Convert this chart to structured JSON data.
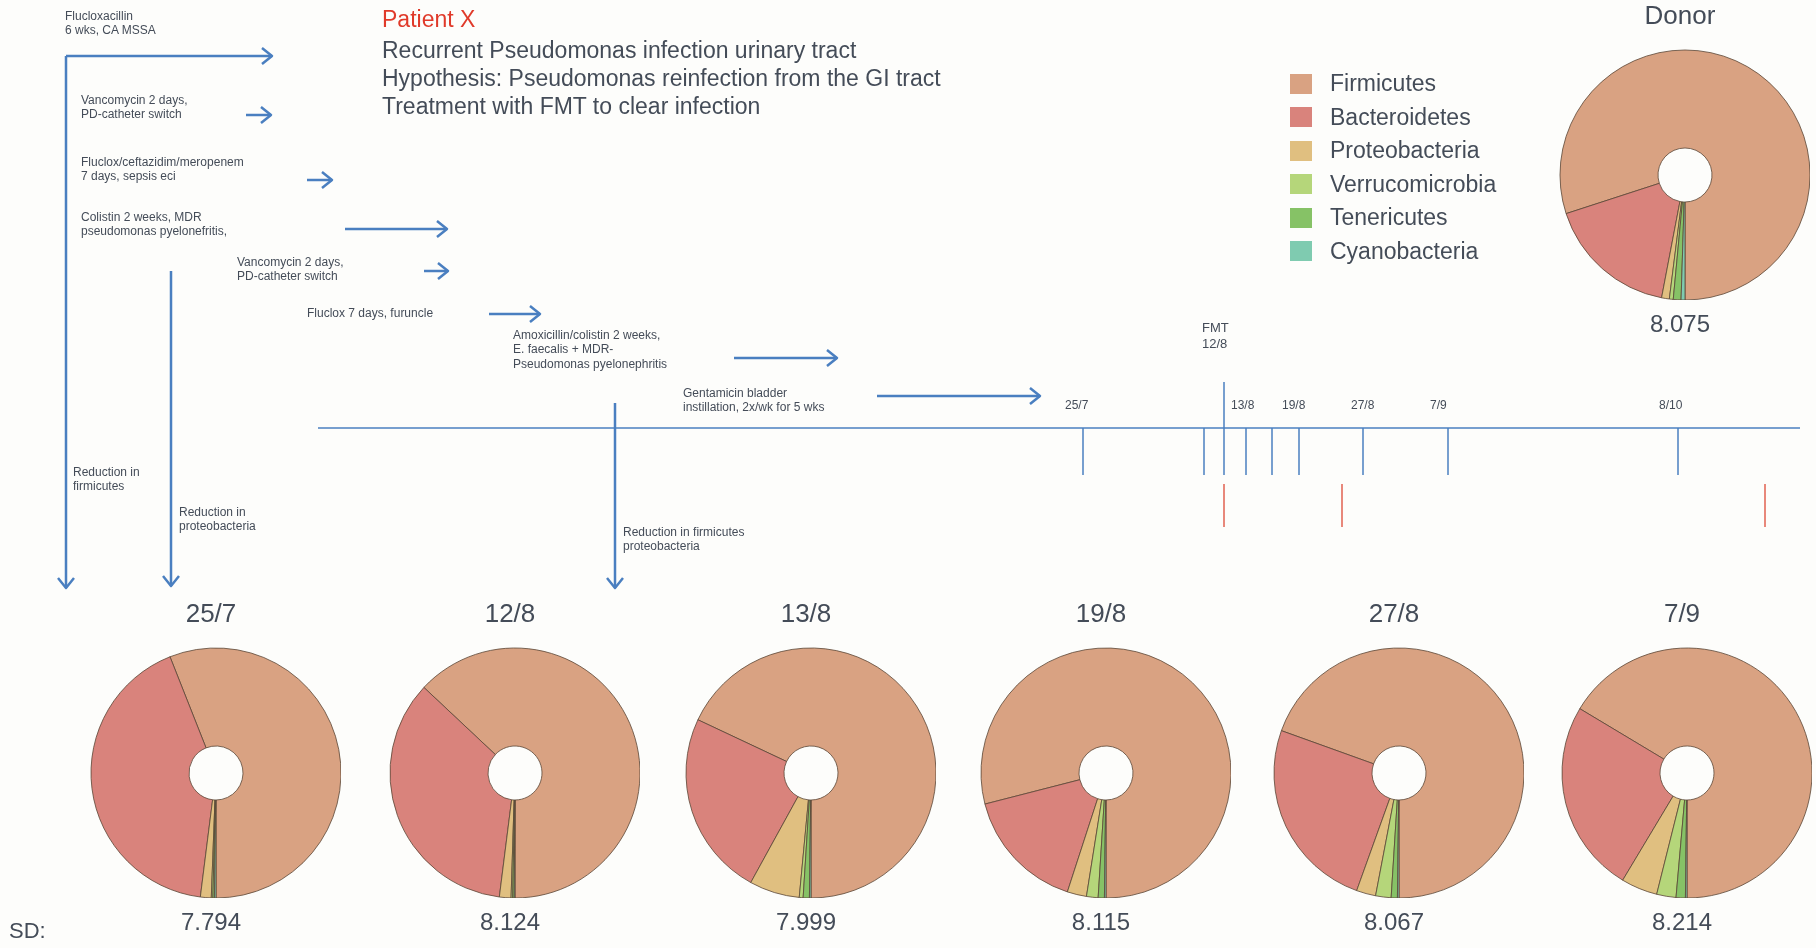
{
  "chart_data": [
    {
      "type": "other",
      "title": "Patient X",
      "annotations": [
        "Recurrent Pseudomonas infection urinary tract",
        "Hypothesis: Pseudomonas reinfection from the GI tract",
        "Treatment with FMT to clear infection",
        "Flucloxacillin\n6 wks, CA MSSA",
        "Vancomycin 2 days,\nPD-catheter switch",
        "Fluclox/ceftazidim/meropenem\n7 days, sepsis eci",
        "Colistin 2 weeks, MDR\npseudomonas pyelonefritis,",
        "Vancomycin 2 days,\nPD-catheter switch",
        "Fluclox 7 days, furuncle",
        "Amoxicillin/colistin 2 weeks,\nE. faecalis + MDR-\nPseudomonas pyelonephritis",
        "Gentamicin bladder\ninstillation, 2x/wk for 5 wks",
        "Reduction in\nfirmicutes",
        "Reduction in\nproteobacteria",
        "Reduction in firmicutes\nproteobacteria",
        "FMT\n12/8",
        "25/7",
        "13/8",
        "19/8",
        "27/8",
        "7/9",
        "8/10",
        "SD:"
      ]
    },
    {
      "type": "donut",
      "title": "Donor",
      "annotations": [
        "8.075"
      ],
      "legend": "left",
      "categories": [
        "Firmicutes",
        "Bacteroidetes",
        "Proteobacteria",
        "Verrucomicrobia",
        "Tenericutes",
        "Cyanobacteria"
      ],
      "values": [
        80,
        17,
        1,
        0.5,
        1,
        0.5
      ],
      "colors": [
        "#d9a282",
        "#d9837c",
        "#e0bf80",
        "#b5d67a",
        "#86c266",
        "#7fcbb0"
      ]
    },
    {
      "type": "donut",
      "title": "25/7",
      "annotations": [
        "7.794"
      ],
      "categories": [
        null,
        null,
        null,
        null,
        null,
        null
      ],
      "values": [
        56,
        42,
        1.4,
        0.2,
        0.2,
        0.2
      ],
      "colors": [
        "#d9a282",
        "#d9837c",
        "#e0bf80",
        "#b5d67a",
        "#86c266",
        "#7fcbb0"
      ]
    },
    {
      "type": "donut",
      "title": "12/8",
      "annotations": [
        "8.124"
      ],
      "categories": [
        null,
        null,
        null,
        null,
        null,
        null
      ],
      "values": [
        63,
        35,
        1.5,
        0.2,
        0.2,
        0.1
      ],
      "colors": [
        "#d9a282",
        "#d9837c",
        "#e0bf80",
        "#b5d67a",
        "#86c266",
        "#7fcbb0"
      ]
    },
    {
      "type": "donut",
      "title": "13/8",
      "annotations": [
        "7.999"
      ],
      "categories": [
        null,
        null,
        null,
        null,
        null,
        null
      ],
      "values": [
        68,
        24,
        6.5,
        0.5,
        0.8,
        0.2
      ],
      "colors": [
        "#d9a282",
        "#d9837c",
        "#e0bf80",
        "#b5d67a",
        "#86c266",
        "#7fcbb0"
      ]
    },
    {
      "type": "donut",
      "title": "19/8",
      "annotations": [
        "8.115"
      ],
      "categories": [
        null,
        null,
        null,
        null,
        null,
        null
      ],
      "values": [
        79,
        16,
        2.5,
        1.5,
        0.8,
        0.2
      ],
      "colors": [
        "#d9a282",
        "#d9837c",
        "#e0bf80",
        "#b5d67a",
        "#86c266",
        "#7fcbb0"
      ]
    },
    {
      "type": "donut",
      "title": "27/8",
      "annotations": [
        "8.067"
      ],
      "categories": [
        null,
        null,
        null,
        null,
        null,
        null
      ],
      "values": [
        69.5,
        25,
        2.5,
        2,
        0.8,
        0.2
      ],
      "colors": [
        "#d9a282",
        "#d9837c",
        "#e0bf80",
        "#b5d67a",
        "#86c266",
        "#7fcbb0"
      ]
    },
    {
      "type": "donut",
      "title": "7/9",
      "annotations": [
        "8.214"
      ],
      "categories": [
        null,
        null,
        null,
        null,
        null,
        null
      ],
      "values": [
        66.4,
        25,
        4.7,
        2.5,
        1.2,
        0.2
      ],
      "colors": [
        "#d9a282",
        "#d9837c",
        "#e0bf80",
        "#b5d67a",
        "#86c266",
        "#7fcbb0"
      ]
    }
  ]
}
